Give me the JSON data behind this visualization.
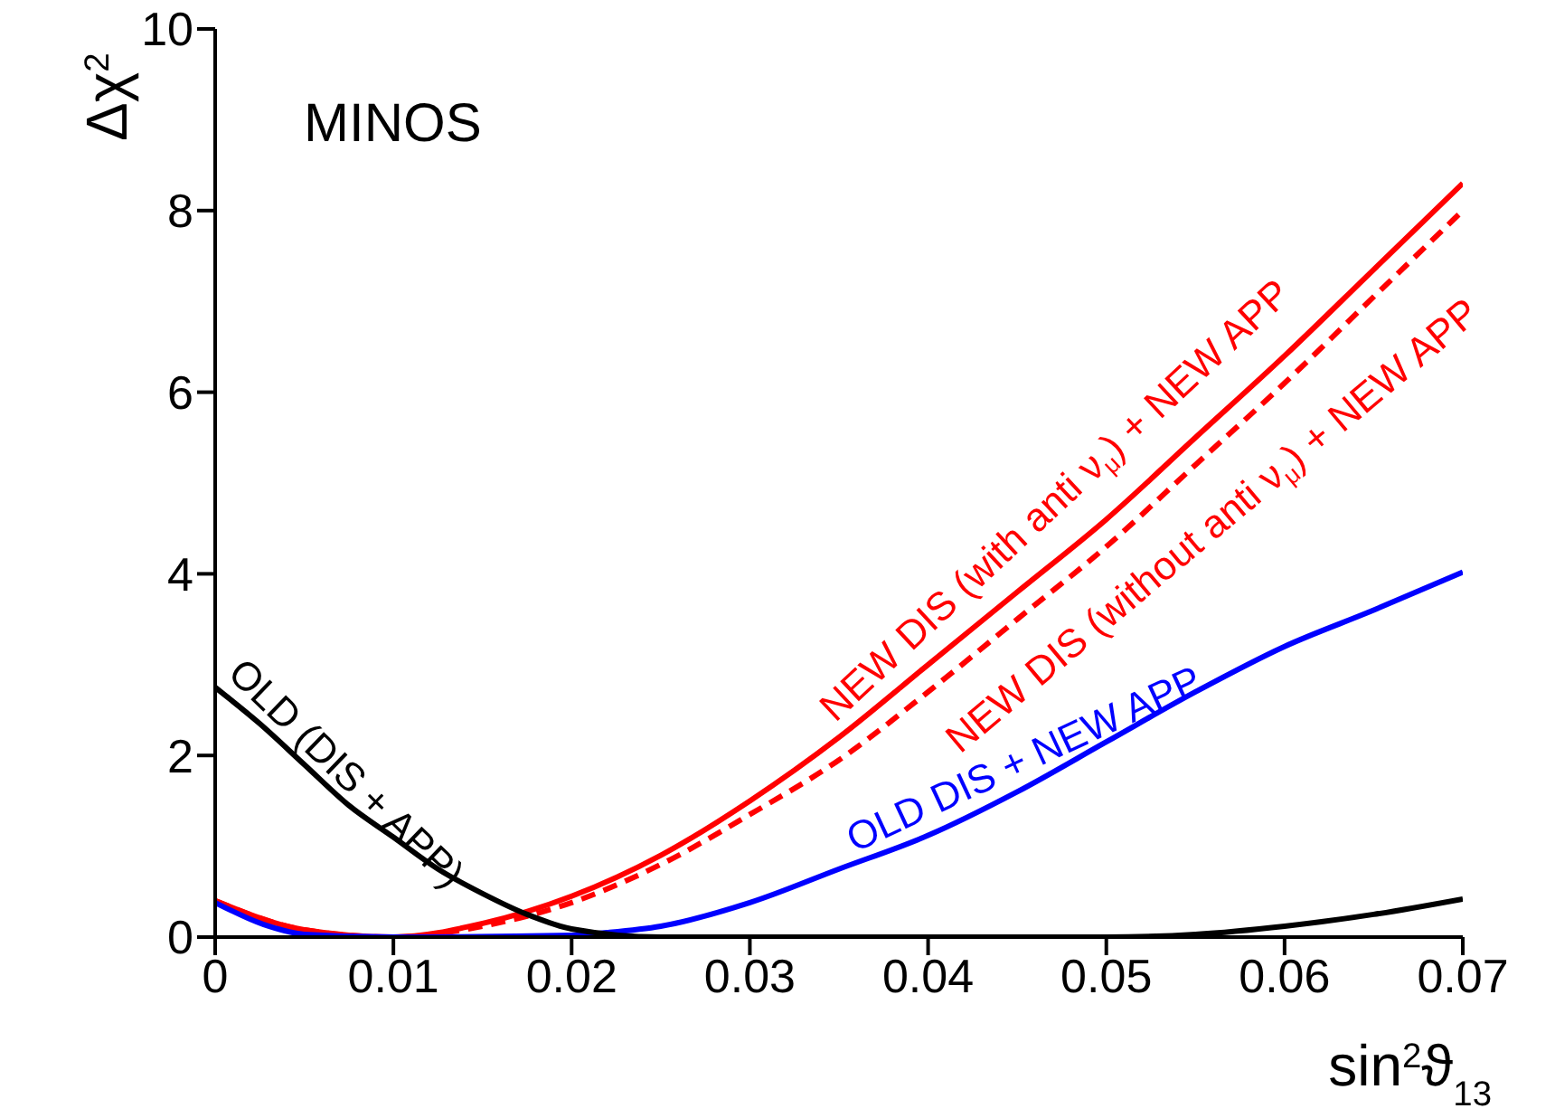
{
  "chart_data": {
    "type": "line",
    "xlabel": "sin$^{2}$ϑ$_{13}$",
    "ylabel": "Δχ$^{2}$",
    "xlim": [
      0,
      0.07
    ],
    "xticks": [
      0,
      0.01,
      0.02,
      0.03,
      0.04,
      0.05,
      0.06,
      0.07
    ],
    "ylim": [
      0,
      10
    ],
    "yticks": [
      0,
      2,
      4,
      6,
      8,
      10
    ],
    "grid": false,
    "legend": false,
    "marker": "none",
    "series": [
      {
        "color": "#ff0000",
        "line_style": "solid",
        "x": [
          0,
          0.005,
          0.01,
          0.015,
          0.02,
          0.025,
          0.03,
          0.035,
          0.04,
          0.045,
          0.05,
          0.055,
          0.06,
          0.065,
          0.07
        ],
        "values": [
          0.4,
          0.08,
          0,
          0.15,
          0.45,
          0.9,
          1.5,
          2.2,
          3.0,
          3.8,
          4.6,
          5.5,
          6.4,
          7.35,
          8.3
        ]
      },
      {
        "color": "#ff0000",
        "line_style": "dashed",
        "x": [
          0,
          0.005,
          0.01,
          0.015,
          0.02,
          0.025,
          0.03,
          0.035,
          0.04,
          0.045,
          0.05,
          0.055,
          0.06,
          0.065,
          0.07
        ],
        "values": [
          0.4,
          0.08,
          0,
          0.12,
          0.38,
          0.8,
          1.35,
          1.95,
          2.7,
          3.5,
          4.3,
          5.2,
          6.1,
          7.05,
          8.0
        ]
      },
      {
        "color": "#0000ff",
        "line_style": "solid",
        "x": [
          0,
          0.003,
          0.005,
          0.01,
          0.02,
          0.022,
          0.025,
          0.03,
          0.035,
          0.04,
          0.045,
          0.05,
          0.055,
          0.06,
          0.065,
          0.07
        ],
        "values": [
          0.38,
          0.12,
          0.03,
          0,
          0.02,
          0.05,
          0.12,
          0.38,
          0.75,
          1.12,
          1.6,
          2.15,
          2.7,
          3.2,
          3.6,
          4.02
        ]
      },
      {
        "color": "#000000",
        "line_style": "solid",
        "x": [
          0,
          0.0025,
          0.005,
          0.0075,
          0.01,
          0.0125,
          0.015,
          0.0175,
          0.02,
          0.025,
          0.03,
          0.04,
          0.05,
          0.055,
          0.06,
          0.065,
          0.07
        ],
        "values": [
          2.75,
          2.35,
          1.9,
          1.45,
          1.1,
          0.75,
          0.48,
          0.25,
          0.09,
          0,
          0,
          0,
          0,
          0.03,
          0.12,
          0.25,
          0.42
        ]
      }
    ],
    "annotations": [
      "MINOS",
      "NEW DIS (with anti ν$_{μ}$) + NEW APP",
      "NEW DIS (without anti ν$_{μ}$) + NEW APP",
      "OLD DIS + NEW APP",
      "OLD (DIS + APP)"
    ]
  }
}
